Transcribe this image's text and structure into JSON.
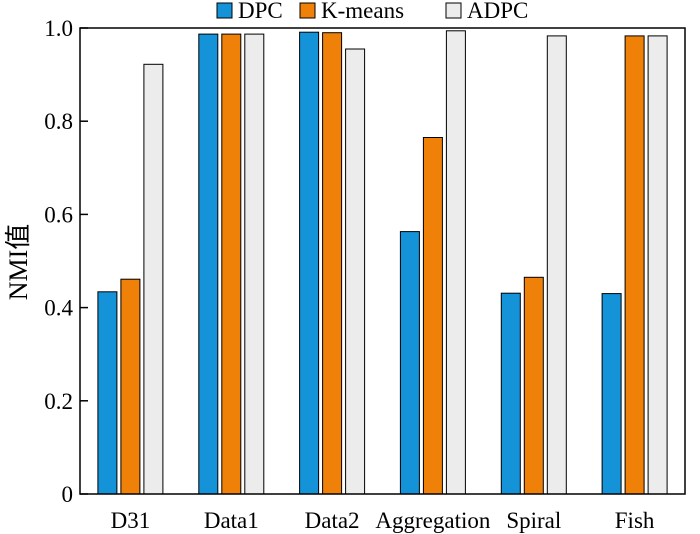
{
  "chart_data": {
    "type": "bar",
    "title": "",
    "xlabel": "",
    "ylabel": "NMI值",
    "ylim": [
      0,
      1.0
    ],
    "yticks": [
      "0",
      "0.2",
      "0.4",
      "0.6",
      "0.8",
      "1.0"
    ],
    "grid": false,
    "legend_position": "top",
    "categories": [
      "D31",
      "Data1",
      "Data2",
      "Aggregation",
      "Spiral",
      "Fish"
    ],
    "series": [
      {
        "name": "DPC",
        "color": "#1593d9",
        "values": [
          0.434,
          0.987,
          0.991,
          0.563,
          0.431,
          0.43
        ]
      },
      {
        "name": "K-means",
        "color": "#f08108",
        "values": [
          0.461,
          0.987,
          0.99,
          0.765,
          0.465,
          0.983
        ]
      },
      {
        "name": "ADPC",
        "color": "#ececec",
        "values": [
          0.922,
          0.987,
          0.955,
          0.994,
          0.983,
          0.983
        ]
      }
    ]
  }
}
